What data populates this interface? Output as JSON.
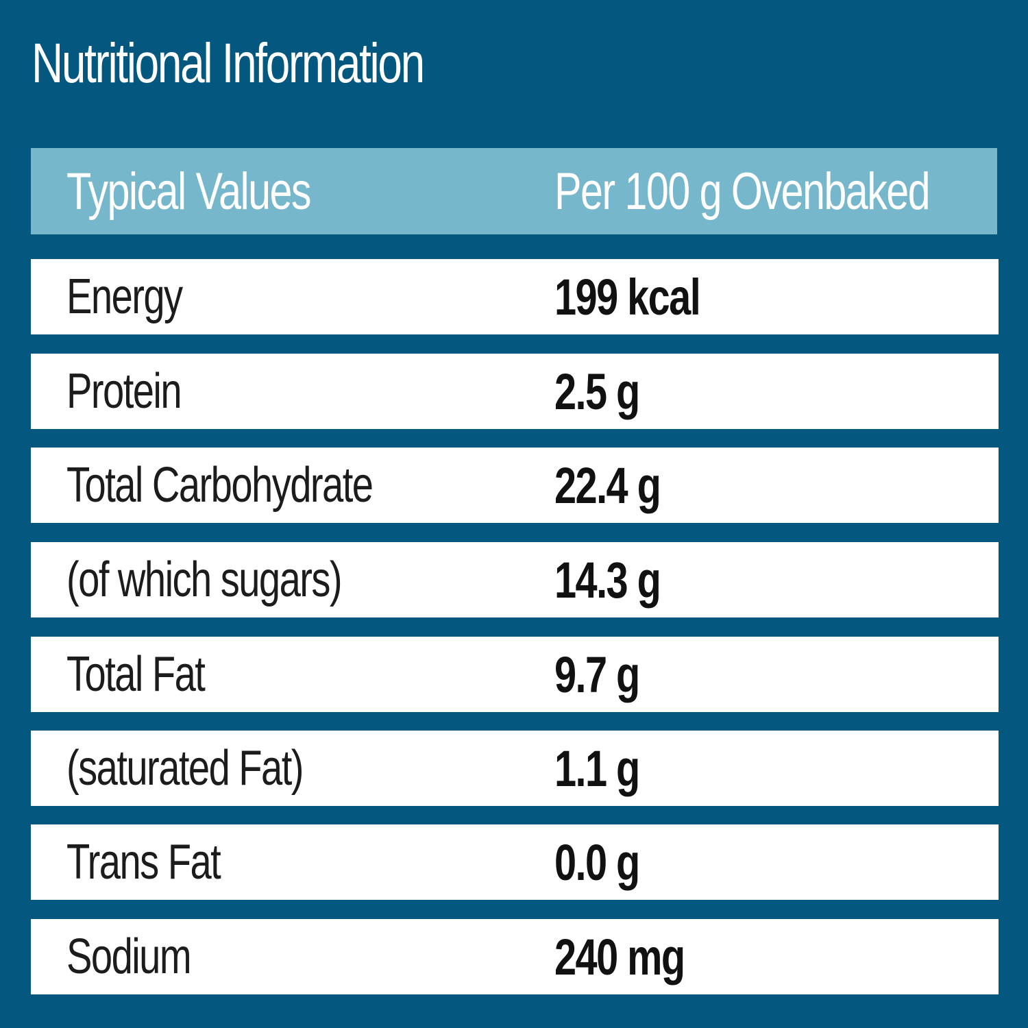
{
  "title": "Nutritional Information",
  "table": {
    "header": {
      "label": "Typical Values",
      "value": "Per 100 g Ovenbaked"
    },
    "rows": [
      {
        "label": "Energy",
        "value": "199 kcal"
      },
      {
        "label": "Protein",
        "value": "2.5 g"
      },
      {
        "label": "Total Carbohydrate",
        "value": "22.4 g"
      },
      {
        "label": "(of which sugars)",
        "value": "14.3 g"
      },
      {
        "label": "Total Fat",
        "value": "9.7 g"
      },
      {
        "label": "(saturated Fat)",
        "value": "1.1 g"
      },
      {
        "label": "Trans Fat",
        "value": "0.0 g"
      },
      {
        "label": "Sodium",
        "value": "240 mg"
      }
    ]
  },
  "colors": {
    "background": "#04577f",
    "header_band": "#77b7cb",
    "row_background": "#ffffff",
    "title_text": "#ffffff",
    "body_text": "#111111"
  }
}
